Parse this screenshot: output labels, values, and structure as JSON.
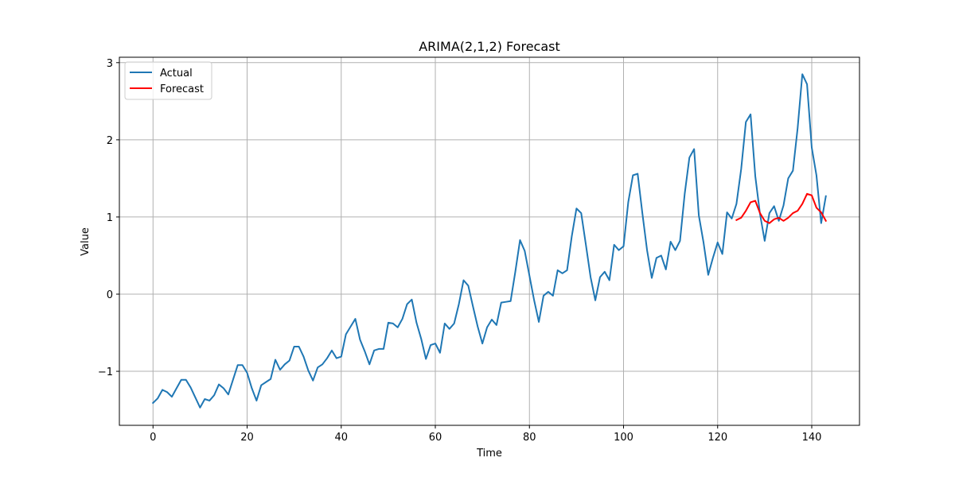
{
  "chart_data": {
    "type": "line",
    "title": "ARIMA(2,1,2) Forecast",
    "xlabel": "Time",
    "ylabel": "Value",
    "xlim": [
      -7.15,
      150.15
    ],
    "ylim": [
      -1.7,
      3.07
    ],
    "xticks": [
      0,
      20,
      40,
      60,
      80,
      100,
      120,
      140
    ],
    "xtick_labels": [
      "0",
      "20",
      "40",
      "60",
      "80",
      "100",
      "120",
      "140"
    ],
    "yticks": [
      -1,
      0,
      1,
      2,
      3
    ],
    "ytick_labels": [
      "−1",
      "0",
      "1",
      "2",
      "3"
    ],
    "grid": true,
    "legend_position": "upper-left",
    "series": [
      {
        "name": "Actual",
        "color": "#1f77b4",
        "x_start": 0,
        "values": [
          -1.41,
          -1.35,
          -1.24,
          -1.27,
          -1.33,
          -1.22,
          -1.11,
          -1.11,
          -1.21,
          -1.34,
          -1.47,
          -1.36,
          -1.38,
          -1.31,
          -1.17,
          -1.22,
          -1.3,
          -1.11,
          -0.92,
          -0.92,
          -1.02,
          -1.22,
          -1.38,
          -1.18,
          -1.14,
          -1.1,
          -0.85,
          -0.98,
          -0.91,
          -0.86,
          -0.68,
          -0.68,
          -0.81,
          -0.99,
          -1.12,
          -0.95,
          -0.91,
          -0.83,
          -0.73,
          -0.83,
          -0.81,
          -0.52,
          -0.42,
          -0.32,
          -0.59,
          -0.74,
          -0.91,
          -0.73,
          -0.71,
          -0.71,
          -0.37,
          -0.38,
          -0.43,
          -0.32,
          -0.13,
          -0.07,
          -0.37,
          -0.58,
          -0.84,
          -0.66,
          -0.64,
          -0.76,
          -0.38,
          -0.45,
          -0.38,
          -0.13,
          0.18,
          0.11,
          -0.16,
          -0.42,
          -0.64,
          -0.43,
          -0.33,
          -0.4,
          -0.11,
          -0.1,
          -0.09,
          0.29,
          0.7,
          0.56,
          0.24,
          -0.08,
          -0.36,
          -0.02,
          0.03,
          -0.02,
          0.31,
          0.27,
          0.31,
          0.75,
          1.11,
          1.05,
          0.64,
          0.22,
          -0.08,
          0.22,
          0.29,
          0.18,
          0.64,
          0.57,
          0.62,
          1.19,
          1.54,
          1.56,
          1.05,
          0.57,
          0.21,
          0.47,
          0.5,
          0.32,
          0.68,
          0.57,
          0.69,
          1.3,
          1.77,
          1.88,
          1.02,
          0.67,
          0.25,
          0.47,
          0.67,
          0.52,
          1.06,
          0.98,
          1.17,
          1.62,
          2.23,
          2.33,
          1.53,
          1.04,
          0.69,
          1.05,
          1.14,
          0.95,
          1.15,
          1.5,
          1.6,
          2.15,
          2.85,
          2.72,
          1.9,
          1.54,
          0.92,
          1.27
        ]
      },
      {
        "name": "Forecast",
        "color": "#ff0000",
        "x_start": 124,
        "values": [
          0.96,
          0.99,
          1.08,
          1.19,
          1.21,
          1.05,
          0.95,
          0.92,
          0.97,
          0.99,
          0.95,
          0.99,
          1.05,
          1.08,
          1.17,
          1.3,
          1.28,
          1.12,
          1.06,
          0.95
        ]
      }
    ]
  }
}
